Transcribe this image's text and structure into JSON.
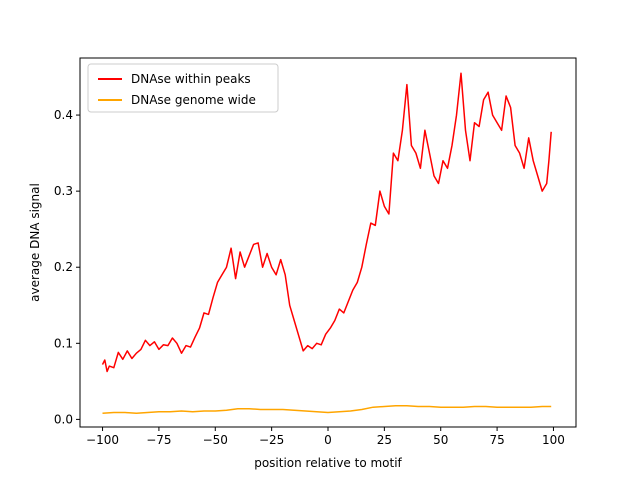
{
  "chart_data": {
    "type": "line",
    "xlabel": "position relative to motif",
    "ylabel": "average DNA signal",
    "xlim": [
      -110,
      110
    ],
    "ylim": [
      -0.01,
      0.475
    ],
    "xticks": [
      -100,
      -75,
      -50,
      -25,
      0,
      25,
      50,
      75,
      100
    ],
    "yticks": [
      0.0,
      0.1,
      0.2,
      0.3,
      0.4
    ],
    "xtick_labels": [
      "−100",
      "−75",
      "−50",
      "−25",
      "0",
      "25",
      "50",
      "75",
      "100"
    ],
    "ytick_labels": [
      "0.0",
      "0.1",
      "0.2",
      "0.3",
      "0.4"
    ],
    "grid": false,
    "legend_position": "upper-left",
    "series": [
      {
        "name": "DNAse within peaks",
        "color": "#ff0000",
        "x": [
          -100,
          -99,
          -98,
          -97,
          -95,
          -93,
          -91,
          -89,
          -87,
          -85,
          -83,
          -81,
          -79,
          -77,
          -75,
          -73,
          -71,
          -69,
          -67,
          -65,
          -63,
          -61,
          -59,
          -57,
          -55,
          -53,
          -51,
          -49,
          -47,
          -45,
          -43,
          -41,
          -39,
          -37,
          -35,
          -33,
          -31,
          -29,
          -27,
          -25,
          -23,
          -21,
          -19,
          -17,
          -15,
          -13,
          -11,
          -9,
          -7,
          -5,
          -3,
          -1,
          1,
          3,
          5,
          7,
          9,
          11,
          13,
          15,
          17,
          19,
          21,
          23,
          25,
          27,
          29,
          31,
          33,
          35,
          37,
          39,
          41,
          43,
          45,
          47,
          49,
          51,
          53,
          55,
          57,
          59,
          61,
          63,
          65,
          67,
          69,
          71,
          73,
          75,
          77,
          79,
          81,
          83,
          85,
          87,
          89,
          91,
          93,
          95,
          97,
          98,
          99
        ],
        "y": [
          0.072,
          0.078,
          0.063,
          0.07,
          0.068,
          0.088,
          0.079,
          0.09,
          0.08,
          0.087,
          0.092,
          0.104,
          0.097,
          0.102,
          0.092,
          0.098,
          0.097,
          0.107,
          0.1,
          0.087,
          0.097,
          0.095,
          0.108,
          0.12,
          0.14,
          0.138,
          0.16,
          0.18,
          0.19,
          0.2,
          0.225,
          0.185,
          0.22,
          0.2,
          0.215,
          0.23,
          0.232,
          0.2,
          0.218,
          0.2,
          0.19,
          0.21,
          0.19,
          0.15,
          0.13,
          0.11,
          0.09,
          0.097,
          0.093,
          0.1,
          0.098,
          0.112,
          0.12,
          0.13,
          0.145,
          0.14,
          0.155,
          0.17,
          0.18,
          0.2,
          0.23,
          0.258,
          0.255,
          0.3,
          0.28,
          0.27,
          0.35,
          0.34,
          0.38,
          0.44,
          0.36,
          0.35,
          0.33,
          0.38,
          0.35,
          0.32,
          0.31,
          0.34,
          0.33,
          0.36,
          0.4,
          0.455,
          0.38,
          0.34,
          0.39,
          0.385,
          0.42,
          0.43,
          0.4,
          0.39,
          0.38,
          0.425,
          0.41,
          0.36,
          0.35,
          0.33,
          0.37,
          0.34,
          0.32,
          0.3,
          0.31,
          0.34,
          0.378
        ]
      },
      {
        "name": "DNAse genome wide",
        "color": "#ffa500",
        "x": [
          -100,
          -95,
          -90,
          -85,
          -80,
          -75,
          -70,
          -65,
          -60,
          -55,
          -50,
          -45,
          -40,
          -35,
          -30,
          -25,
          -20,
          -15,
          -10,
          -5,
          0,
          5,
          10,
          15,
          20,
          25,
          30,
          35,
          40,
          45,
          50,
          55,
          60,
          65,
          70,
          75,
          80,
          85,
          90,
          95,
          99
        ],
        "y": [
          0.008,
          0.009,
          0.009,
          0.008,
          0.009,
          0.01,
          0.01,
          0.011,
          0.01,
          0.011,
          0.011,
          0.012,
          0.014,
          0.014,
          0.013,
          0.013,
          0.013,
          0.012,
          0.011,
          0.01,
          0.009,
          0.01,
          0.011,
          0.013,
          0.016,
          0.017,
          0.018,
          0.018,
          0.017,
          0.017,
          0.016,
          0.016,
          0.016,
          0.017,
          0.017,
          0.016,
          0.016,
          0.016,
          0.016,
          0.017,
          0.017
        ]
      }
    ]
  }
}
